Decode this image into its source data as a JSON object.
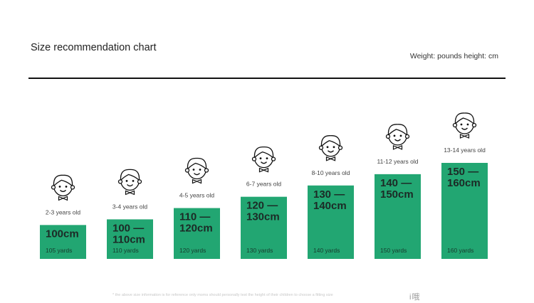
{
  "header": {
    "title": "Size recommendation chart",
    "units": "Weight: pounds height: cm"
  },
  "chart_data": {
    "type": "bar",
    "title": "Size recommendation chart",
    "categories": [
      "2-3 years old",
      "3-4 years old",
      "4-5 years old",
      "6-7 years old",
      "8-10 years old",
      "11-12 years old",
      "13-14 years old"
    ],
    "size_labels": [
      [
        "100cm"
      ],
      [
        "100 —",
        "110cm"
      ],
      [
        "110 —",
        "120cm"
      ],
      [
        "120 —",
        "130cm"
      ],
      [
        "130 —",
        "140cm"
      ],
      [
        "140 —",
        "150cm"
      ],
      [
        "150 —",
        "160cm"
      ]
    ],
    "yard_labels": [
      "105 yards",
      "110 yards",
      "120 yards",
      "130 yards",
      "140 yards",
      "150 yards",
      "160 yards"
    ],
    "values": [
      105,
      110,
      120,
      130,
      140,
      150,
      160
    ],
    "ylim": [
      75,
      160
    ],
    "bar_color": "#22a672",
    "icon": "child-face-icon"
  },
  "footer": {
    "note": "* the above size information is for reference only moms should personally test the height of their children to choose a fitting size",
    "stamp": "i哦"
  }
}
